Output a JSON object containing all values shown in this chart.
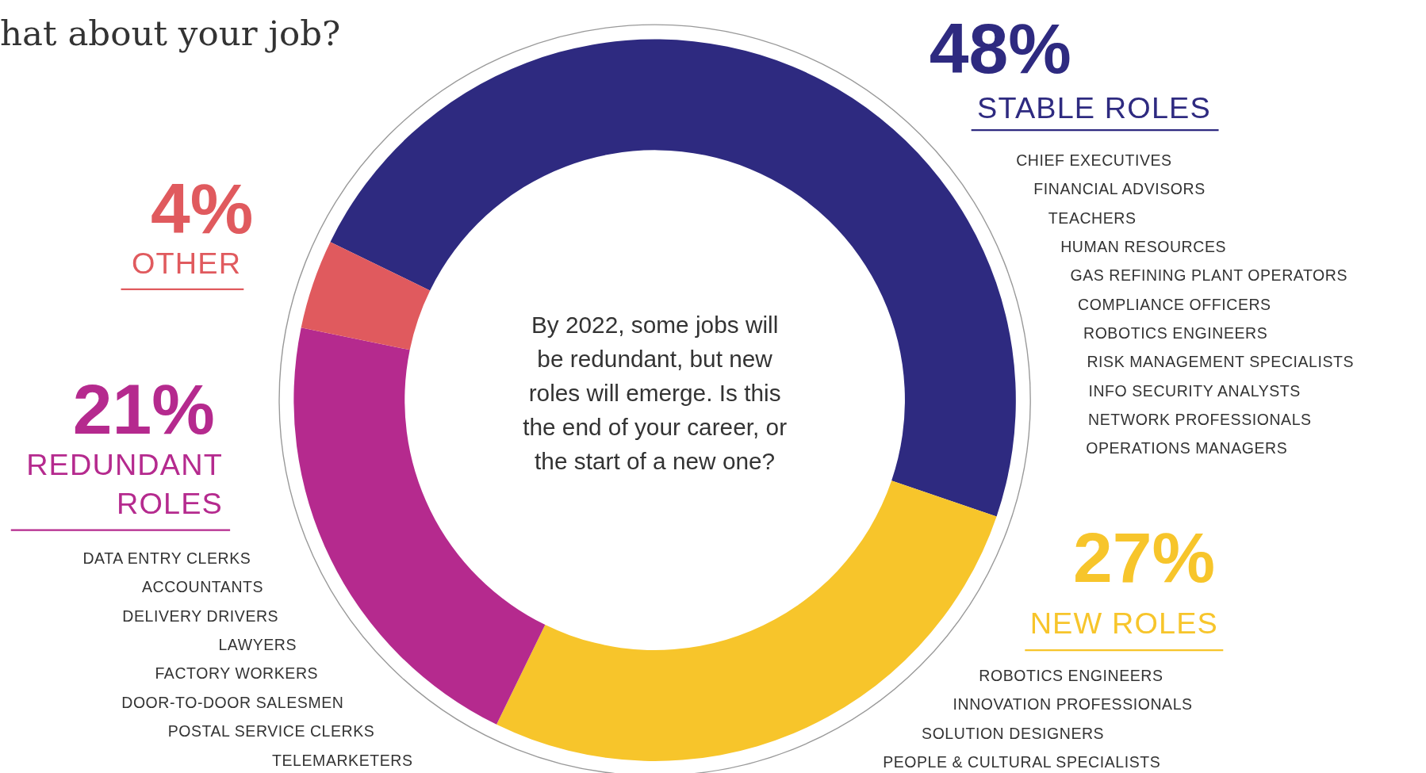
{
  "chart_data": {
    "type": "donut",
    "title": "hat about your job?",
    "categories": [
      "STABLE ROLES",
      "NEW ROLES",
      "REDUNDANT ROLES",
      "OTHER"
    ],
    "values": [
      48,
      27,
      21,
      4
    ],
    "colors": [
      "#2e2a80",
      "#f7c52b",
      "#b52a8e",
      "#e05a5e"
    ],
    "value_labels": [
      "48%",
      "27%",
      "21%",
      "4%"
    ],
    "annotations": [
      "By 2022, some jobs will\nbe redundant, but new\nroles will emerge. Is this\nthe end of your career, or\nthe start of a new one?",
      "CHIEF EXECUTIVES\nFINANCIAL ADVISORS\nTEACHERS\nHUMAN RESOURCES\nGAS REFINING PLANT OPERATORS\nCOMPLIANCE OFFICERS\nROBOTICS ENGINEERS\nRISK MANAGEMENT SPECIALISTS\nINFO SECURITY ANALYSTS\nNETWORK PROFESSIONALS\nOPERATIONS MANAGERS",
      "ROBOTICS ENGINEERS\nINNOVATION PROFESSIONALS\nSOLUTION DESIGNERS\nPEOPLE & CULTURAL SPECIALISTS",
      "DATA ENTRY CLERKS\nACCOUNTANTS\nDELIVERY DRIVERS\nLAWYERS\nFACTORY WORKERS\nDOOR-TO-DOOR SALESMEN\nPOSTAL SERVICE CLERKS\nTELEMARKETERS"
    ]
  }
}
